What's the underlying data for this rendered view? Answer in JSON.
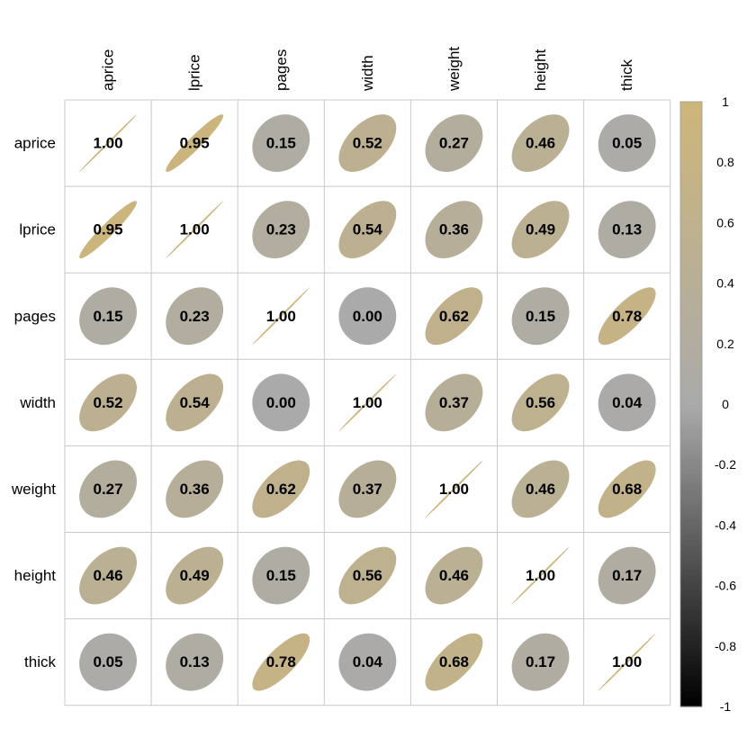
{
  "chart_data": {
    "type": "heatmap",
    "method": "ellipse",
    "variables": [
      "aprice",
      "lprice",
      "pages",
      "width",
      "weight",
      "height",
      "thick"
    ],
    "matrix": [
      [
        1.0,
        0.95,
        0.15,
        0.52,
        0.27,
        0.46,
        0.05
      ],
      [
        0.95,
        1.0,
        0.23,
        0.54,
        0.36,
        0.49,
        0.13
      ],
      [
        0.15,
        0.23,
        1.0,
        0.0,
        0.62,
        0.15,
        0.78
      ],
      [
        0.52,
        0.54,
        0.0,
        1.0,
        0.37,
        0.56,
        0.04
      ],
      [
        0.27,
        0.36,
        0.62,
        0.37,
        1.0,
        0.46,
        0.68
      ],
      [
        0.46,
        0.49,
        0.15,
        0.56,
        0.46,
        1.0,
        0.17
      ],
      [
        0.05,
        0.13,
        0.78,
        0.04,
        0.68,
        0.17,
        1.0
      ]
    ],
    "colorbar": {
      "range": [
        -1,
        1
      ],
      "ticks": [
        "1",
        "0.8",
        "0.6",
        "0.4",
        "0.2",
        "0",
        "-0.2",
        "-0.4",
        "-0.6",
        "-0.8",
        "-1"
      ],
      "colors": {
        "low": "#000000",
        "mid": "#aaaaaa",
        "high": "#cdb67a"
      }
    },
    "grid": true,
    "legend": "right"
  }
}
